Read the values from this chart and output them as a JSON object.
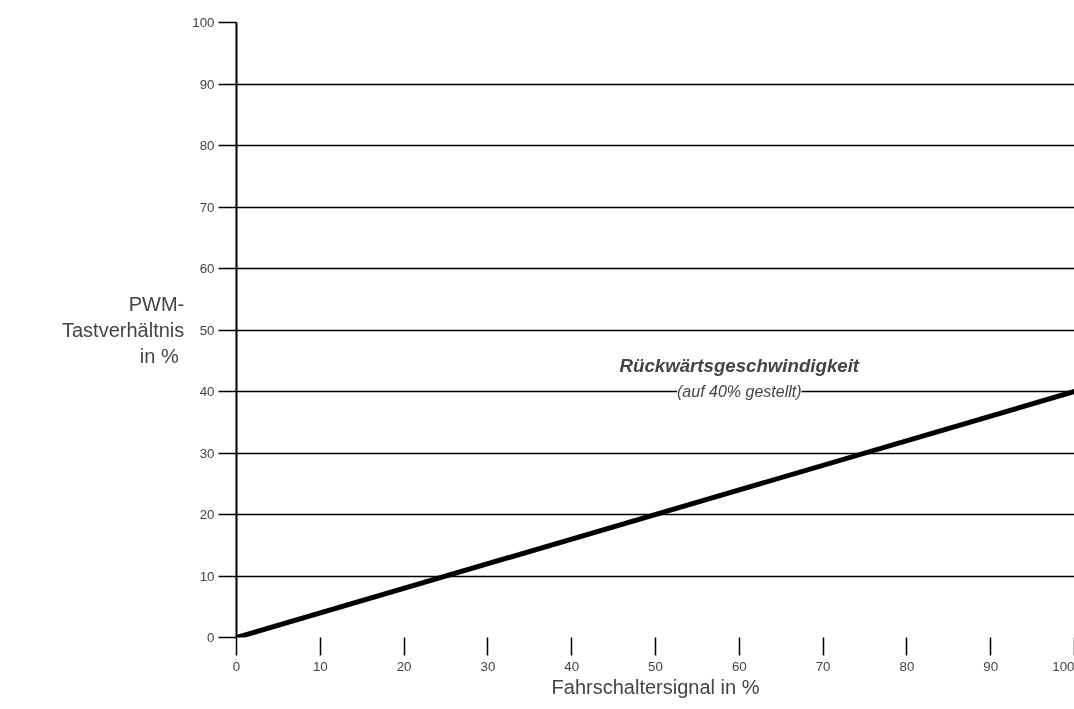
{
  "chart_data": {
    "type": "line",
    "xlabel": "Fahrschaltersignal in %",
    "ylabel": "PWM-\nTastverhältnis\n in %",
    "x": [
      0,
      100
    ],
    "series": [
      {
        "color": "#000000",
        "values": [
          0,
          40
        ]
      }
    ],
    "xlim": [
      0,
      100
    ],
    "ylim": [
      0,
      100
    ],
    "xticks": [
      0,
      10,
      20,
      30,
      40,
      50,
      60,
      70,
      80,
      90,
      100
    ],
    "yticks": [
      0,
      10,
      20,
      30,
      40,
      50,
      60,
      70,
      80,
      90,
      100
    ],
    "grid": "y",
    "marker": "none",
    "line_style": "solid",
    "annotations": [
      "Rückwärtsgeschwindigkeit",
      "(auf 40% gestellt)"
    ]
  }
}
